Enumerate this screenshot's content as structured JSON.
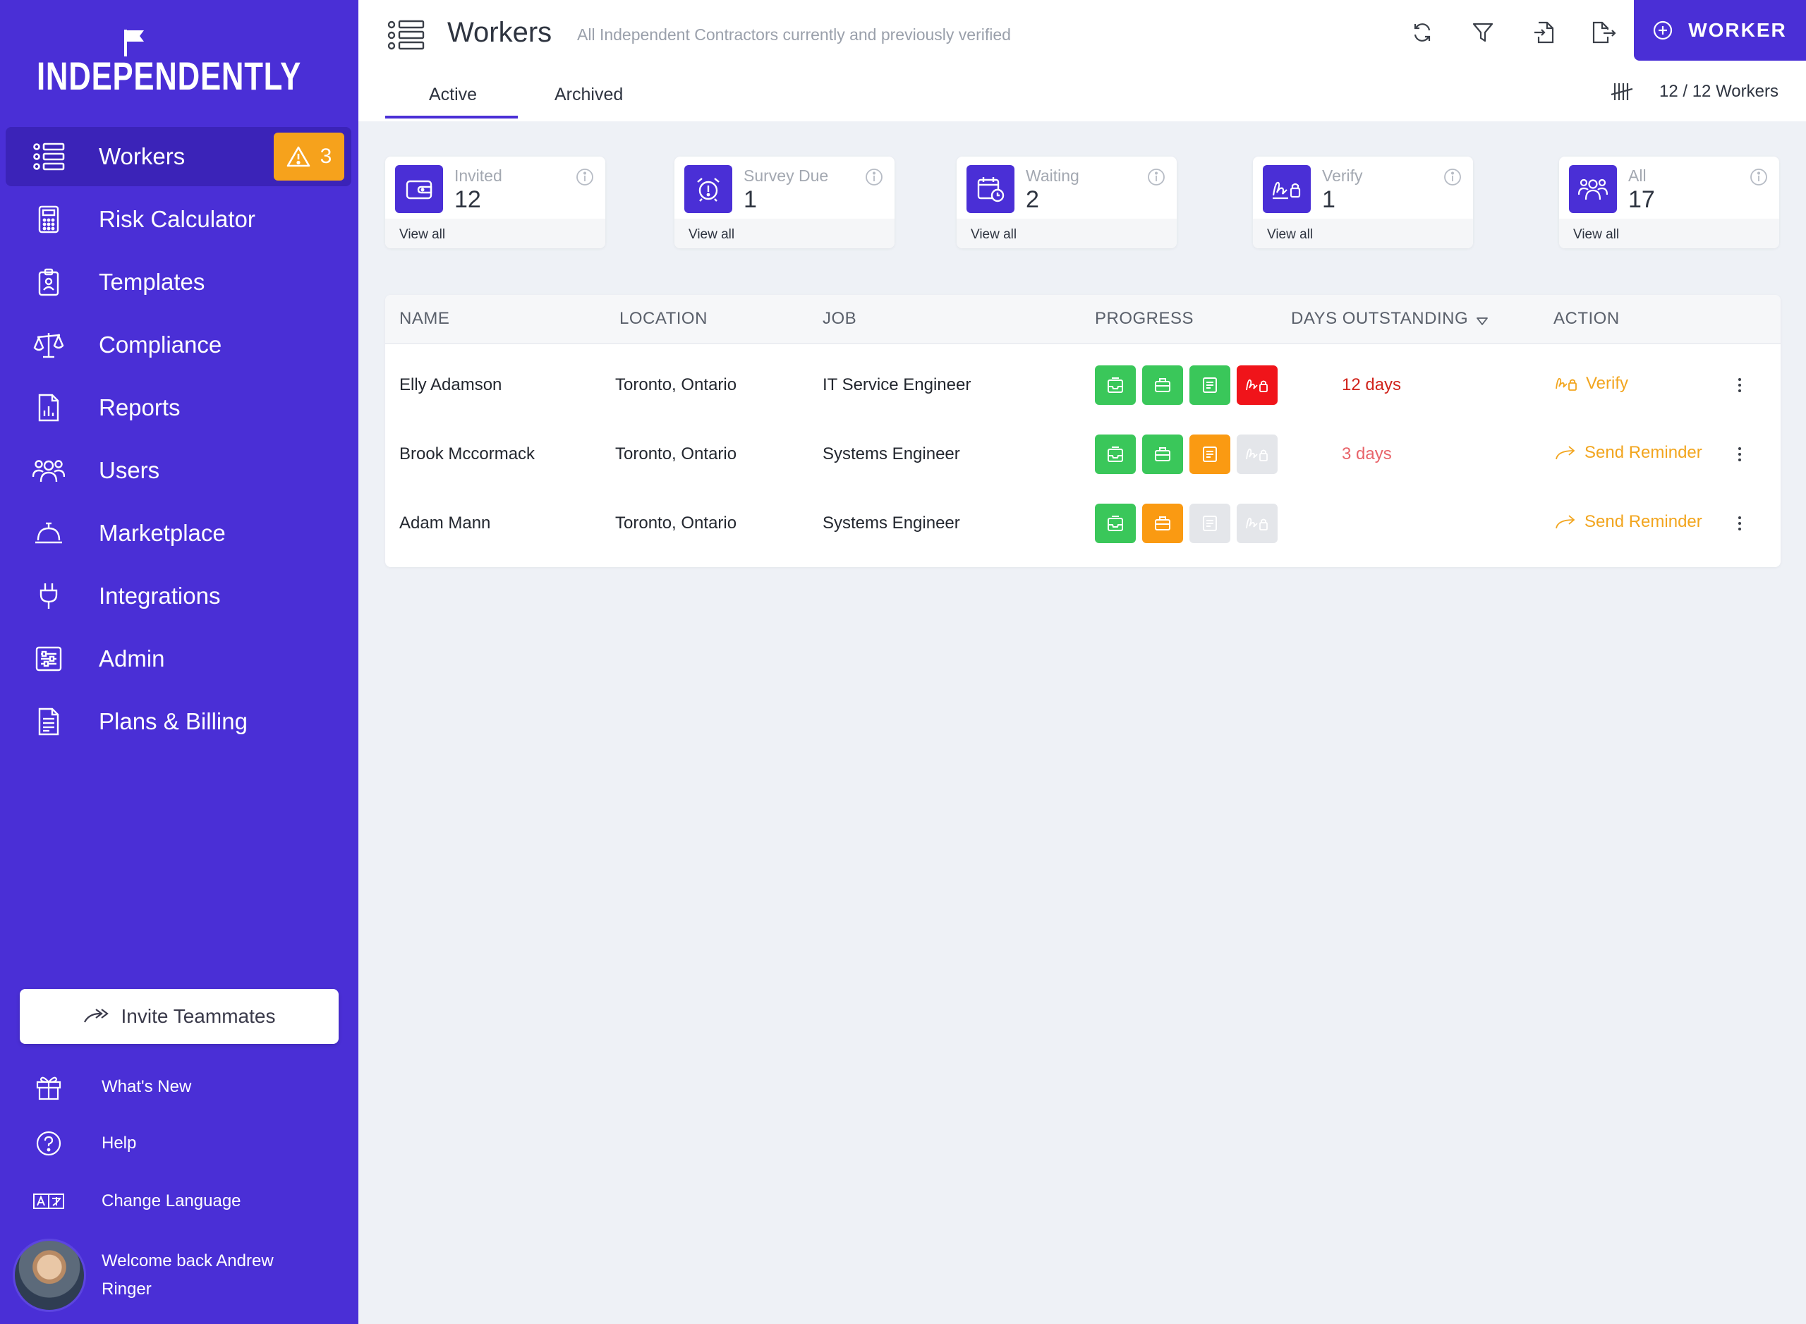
{
  "app": {
    "logo": "INDEPENDENTLY"
  },
  "sidebar": {
    "items": [
      {
        "label": "Workers",
        "icon": "workers-list-icon",
        "active": true,
        "badge": "3"
      },
      {
        "label": "Risk Calculator",
        "icon": "calculator-icon"
      },
      {
        "label": "Templates",
        "icon": "id-badge-icon"
      },
      {
        "label": "Compliance",
        "icon": "scales-icon"
      },
      {
        "label": "Reports",
        "icon": "report-chart-icon"
      },
      {
        "label": "Users",
        "icon": "users-icon"
      },
      {
        "label": "Marketplace",
        "icon": "bell-service-icon"
      },
      {
        "label": "Integrations",
        "icon": "plug-icon"
      },
      {
        "label": "Admin",
        "icon": "admin-sliders-icon"
      },
      {
        "label": "Plans & Billing",
        "icon": "invoice-icon"
      }
    ],
    "invite_label": "Invite Teammates",
    "whats_new": "What's New",
    "help": "Help",
    "change_language": "Change Language",
    "welcome": "Welcome back Andrew Ringer"
  },
  "header": {
    "title": "Workers",
    "subtitle": "All Independent Contractors currently and previously verified",
    "add_label": "WORKER",
    "tabs": [
      "Active",
      "Archived"
    ],
    "count": "12 / 12 Workers"
  },
  "stats": [
    {
      "label": "Invited",
      "value": "12",
      "link": "View all",
      "icon": "wallet-icon"
    },
    {
      "label": "Survey Due",
      "value": "1",
      "link": "View all",
      "icon": "alarm-clock-icon"
    },
    {
      "label": "Waiting",
      "value": "2",
      "link": "View all",
      "icon": "calendar-clock-icon"
    },
    {
      "label": "Verify",
      "value": "1",
      "link": "View all",
      "icon": "verify-signature-icon"
    },
    {
      "label": "All",
      "value": "17",
      "link": "View all",
      "icon": "group-icon"
    }
  ],
  "table": {
    "columns": [
      "NAME",
      "LOCATION",
      "JOB",
      "PROGRESS",
      "DAYS OUTSTANDING",
      "ACTION"
    ],
    "rows": [
      {
        "name": "Elly Adamson",
        "location": "Toronto, Ontario",
        "job": "IT Service Engineer",
        "progress": [
          "green",
          "green",
          "green",
          "red"
        ],
        "days": "12 days",
        "days_color": "#d0241c",
        "action": "Verify",
        "action_icon": "verify-signature-icon"
      },
      {
        "name": "Brook Mccormack",
        "location": "Toronto, Ontario",
        "job": "Systems Engineer",
        "progress": [
          "green",
          "green",
          "orange",
          "grey"
        ],
        "days": "3 days",
        "days_color": "#e8646a",
        "action": "Send Reminder",
        "action_icon": "reply-arrow-icon"
      },
      {
        "name": "Adam Mann",
        "location": "Toronto, Ontario",
        "job": "Systems Engineer",
        "progress": [
          "green",
          "orange",
          "grey",
          "grey"
        ],
        "days": "",
        "days_color": "#e8646a",
        "action": "Send Reminder",
        "action_icon": "reply-arrow-icon"
      }
    ]
  },
  "colors": {
    "brand": "#4a2fd6",
    "warning": "#f6a21c",
    "success": "#3ac75a",
    "danger": "#f0141a",
    "action": "#f2a51e"
  }
}
